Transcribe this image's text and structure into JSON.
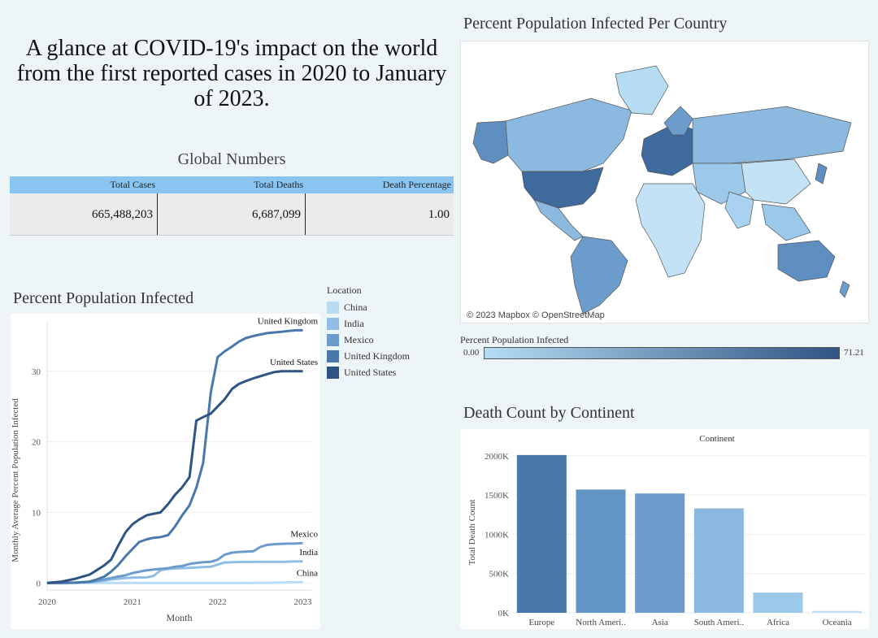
{
  "headline": "A glance at COVID-19's impact on the world from the first reported cases in 2020 to January of 2023.",
  "global_numbers": {
    "title": "Global Numbers",
    "headers": [
      "Total Cases",
      "Total Deaths",
      "Death Percentage"
    ],
    "values": [
      "665,488,203",
      "6,687,099",
      "1.00"
    ]
  },
  "map": {
    "title": "Percent Population Infected Per Country",
    "credit": "© 2023 Mapbox © OpenStreetMap",
    "legend_title": "Percent Population Infected",
    "legend_min": "0.00",
    "legend_max": "71.21",
    "color_low": "#b5dcf3",
    "color_high": "#2e5584"
  },
  "location_legend": {
    "title": "Location",
    "items": [
      {
        "label": "China",
        "color": "#b8dcf2"
      },
      {
        "label": "India",
        "color": "#8fbde4"
      },
      {
        "label": "Mexico",
        "color": "#6b9ccb"
      },
      {
        "label": "United Kingdom",
        "color": "#4a78ab"
      },
      {
        "label": "United States",
        "color": "#2d5482"
      }
    ]
  },
  "chart_data": [
    {
      "type": "line",
      "title": "Percent Population Infected",
      "xlabel": "Month",
      "ylabel": "Monthly Average Percent Population Infected",
      "x_ticks": [
        "2020",
        "2021",
        "2022",
        "2023"
      ],
      "y_ticks": [
        "0",
        "10",
        "20",
        "30"
      ],
      "xlim": [
        2020,
        2023.1
      ],
      "ylim": [
        -1,
        37
      ],
      "x": [
        2020.0,
        2020.17,
        2020.33,
        2020.5,
        2020.58,
        2020.67,
        2020.75,
        2020.83,
        2020.92,
        2021.0,
        2021.08,
        2021.17,
        2021.25,
        2021.33,
        2021.42,
        2021.5,
        2021.58,
        2021.67,
        2021.75,
        2021.83,
        2021.92,
        2022.0,
        2022.08,
        2022.17,
        2022.25,
        2022.33,
        2022.42,
        2022.5,
        2022.58,
        2022.67,
        2022.75,
        2022.83,
        2022.92,
        2023.0
      ],
      "series": [
        {
          "name": "China",
          "values": [
            0,
            0,
            0,
            0,
            0,
            0,
            0,
            0,
            0,
            0,
            0,
            0,
            0,
            0,
            0,
            0,
            0,
            0,
            0,
            0,
            0,
            0,
            0,
            0,
            0,
            0,
            0,
            0.02,
            0.03,
            0.05,
            0.07,
            0.09,
            0.1,
            0.12
          ]
        },
        {
          "name": "India",
          "values": [
            0,
            0,
            0.05,
            0.1,
            0.2,
            0.35,
            0.5,
            0.6,
            0.7,
            0.75,
            0.78,
            0.8,
            1.0,
            1.8,
            2.0,
            2.05,
            2.1,
            2.15,
            2.2,
            2.25,
            2.3,
            2.6,
            2.9,
            2.95,
            2.97,
            2.98,
            2.99,
            3.0,
            3.0,
            3.0,
            3.0,
            3.02,
            3.05,
            3.05
          ]
        },
        {
          "name": "Mexico",
          "values": [
            0,
            0,
            0.05,
            0.15,
            0.3,
            0.5,
            0.7,
            0.9,
            1.1,
            1.4,
            1.6,
            1.8,
            1.9,
            2.0,
            2.1,
            2.3,
            2.4,
            2.7,
            2.85,
            2.95,
            3.0,
            3.3,
            4.0,
            4.3,
            4.4,
            4.45,
            4.5,
            5.1,
            5.4,
            5.5,
            5.55,
            5.58,
            5.6,
            5.65
          ]
        },
        {
          "name": "United Kingdom",
          "values": [
            0,
            0,
            0.05,
            0.2,
            0.5,
            0.9,
            1.6,
            2.5,
            3.8,
            4.8,
            5.8,
            6.2,
            6.4,
            6.5,
            6.8,
            8.0,
            9.5,
            11.0,
            13.5,
            17.0,
            27.0,
            32.0,
            32.8,
            33.5,
            34.2,
            34.7,
            35.0,
            35.2,
            35.4,
            35.5,
            35.6,
            35.7,
            35.8,
            35.8
          ]
        },
        {
          "name": "United States",
          "values": [
            0,
            0.2,
            0.6,
            1.2,
            1.8,
            2.5,
            3.3,
            5.2,
            7.2,
            8.3,
            9.0,
            9.6,
            9.8,
            10.0,
            11.2,
            12.5,
            13.5,
            15.0,
            23.0,
            23.5,
            24.0,
            25.0,
            26.0,
            27.5,
            28.2,
            28.6,
            29.0,
            29.3,
            29.6,
            29.9,
            30.0,
            30.0,
            30.0,
            30.0
          ]
        }
      ]
    },
    {
      "type": "bar",
      "title": "Death Count by Continent",
      "header": "Continent",
      "xlabel": "",
      "ylabel": "Total Death Count",
      "categories": [
        "Europe",
        "North Ameri..",
        "Asia",
        "South Ameri..",
        "Africa",
        "Oceania"
      ],
      "values": [
        2010000,
        1570000,
        1520000,
        1330000,
        258000,
        23000
      ],
      "y_ticks": [
        "0K",
        "500K",
        "1000K",
        "1500K",
        "2000K"
      ],
      "ylim": [
        0,
        2050000
      ],
      "colors": [
        "#4a78ab",
        "#6395c4",
        "#6b9ccb",
        "#8ab8df",
        "#9cc8ea",
        "#b8dcf2"
      ]
    }
  ]
}
